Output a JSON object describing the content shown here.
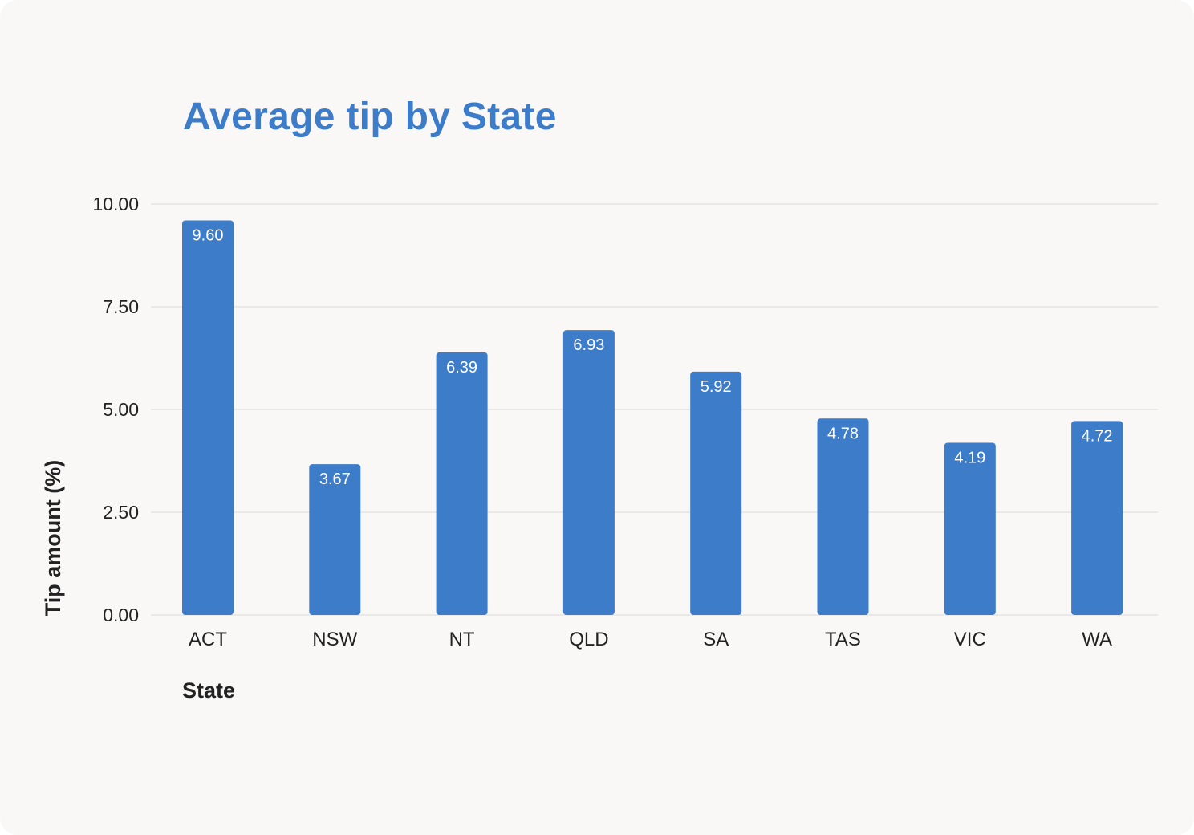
{
  "chart_data": {
    "type": "bar",
    "title": "Average tip by State",
    "xlabel": "State",
    "ylabel": "Tip amount (%)",
    "categories": [
      "ACT",
      "NSW",
      "NT",
      "QLD",
      "SA",
      "TAS",
      "VIC",
      "WA"
    ],
    "values": [
      9.6,
      3.67,
      6.39,
      6.93,
      5.92,
      4.78,
      4.19,
      4.72
    ],
    "value_labels": [
      "9.60",
      "3.67",
      "6.39",
      "6.93",
      "5.92",
      "4.78",
      "4.19",
      "4.72"
    ],
    "yticks": [
      "0.00",
      "2.50",
      "5.00",
      "7.50",
      "10.00"
    ],
    "ytick_values": [
      0,
      2.5,
      5,
      7.5,
      10
    ],
    "ylim": [
      0,
      10
    ],
    "grid": true,
    "legend": "none",
    "bar_color": "#3d7cc9",
    "title_color": "#3d7cc9",
    "background_color": "#f9f8f7"
  }
}
